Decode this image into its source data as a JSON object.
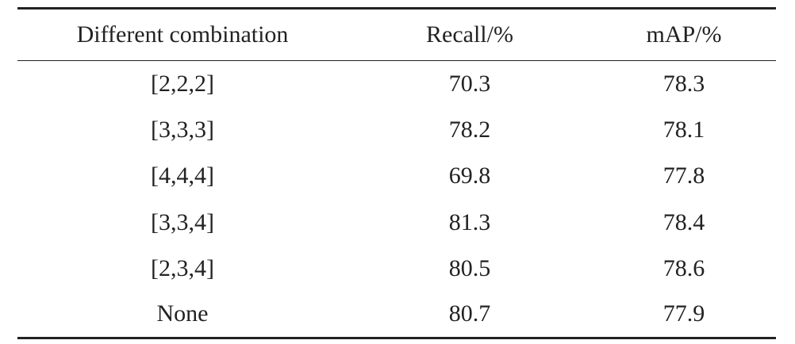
{
  "table": {
    "header": [
      "Different combination",
      "Recall/%",
      "mAP/%"
    ],
    "rows": [
      [
        "[2,2,2]",
        "70.3",
        "78.3"
      ],
      [
        "[3,3,3]",
        "78.2",
        "78.1"
      ],
      [
        "[4,4,4]",
        "69.8",
        "77.8"
      ],
      [
        "[3,3,4]",
        "81.3",
        "78.4"
      ],
      [
        "[2,3,4]",
        "80.5",
        "78.6"
      ],
      [
        "None",
        "80.7",
        "77.9"
      ]
    ]
  }
}
